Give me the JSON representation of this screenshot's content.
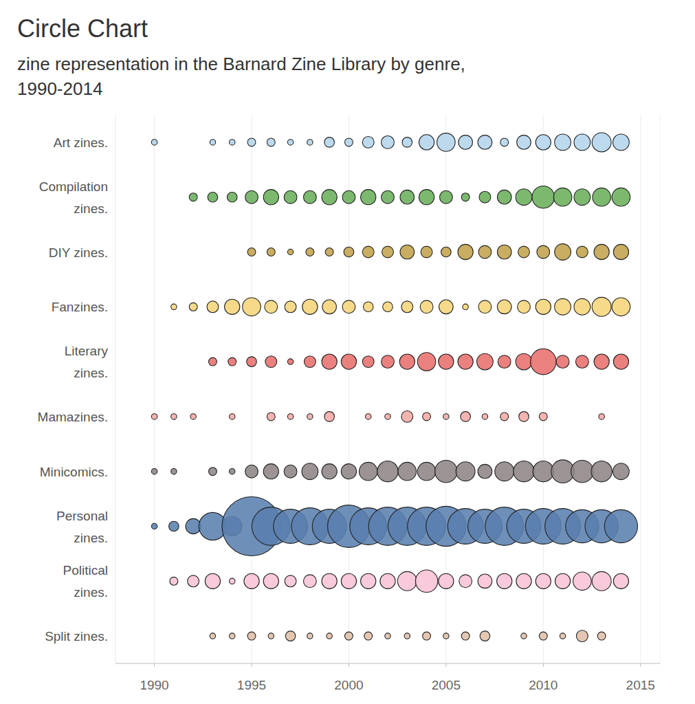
{
  "chart_data": {
    "type": "bubble",
    "title": "Circle Chart",
    "subtitle": "zine representation in the Barnard Zine Library by genre, 1990-2014",
    "x": [
      1990,
      1991,
      1992,
      1993,
      1994,
      1995,
      1996,
      1997,
      1998,
      1999,
      2000,
      2001,
      2002,
      2003,
      2004,
      2005,
      2006,
      2007,
      2008,
      2009,
      2010,
      2011,
      2012,
      2013,
      2014
    ],
    "xlim": [
      1988,
      2016
    ],
    "xticks": [
      1990,
      1995,
      2000,
      2005,
      2010,
      2015
    ],
    "grid": true,
    "series": [
      {
        "name": "Art zines.",
        "color": "#b3d4ec",
        "values": [
          1,
          null,
          null,
          1,
          1,
          2,
          2,
          1,
          1,
          3,
          2,
          4,
          5,
          3,
          7,
          10,
          6,
          6,
          2,
          6,
          7,
          8,
          8,
          11,
          8
        ]
      },
      {
        "name": "Compilation zines.",
        "color": "#6aaf5b",
        "values": [
          null,
          null,
          2,
          3,
          3,
          5,
          7,
          5,
          5,
          7,
          5,
          7,
          5,
          6,
          7,
          5,
          2,
          4,
          6,
          8,
          15,
          10,
          8,
          10,
          10
        ]
      },
      {
        "name": "DIY zines.",
        "color": "#c2a24a",
        "values": [
          null,
          null,
          null,
          null,
          null,
          2,
          2,
          1,
          2,
          2,
          3,
          4,
          4,
          6,
          4,
          3,
          7,
          5,
          6,
          4,
          5,
          8,
          4,
          7,
          7
        ]
      },
      {
        "name": "Fanzines.",
        "color": "#f5d57a",
        "values": [
          null,
          1,
          2,
          4,
          7,
          10,
          5,
          4,
          7,
          6,
          5,
          3,
          3,
          4,
          5,
          6,
          1,
          5,
          6,
          5,
          7,
          8,
          8,
          11,
          10
        ]
      },
      {
        "name": "Literary zines.",
        "color": "#e8706d",
        "values": [
          null,
          null,
          null,
          2,
          2,
          3,
          4,
          1,
          4,
          7,
          7,
          4,
          5,
          7,
          10,
          7,
          7,
          8,
          5,
          8,
          20,
          5,
          5,
          7,
          7
        ]
      },
      {
        "name": "Mamazines.",
        "color": "#f5aaa6",
        "values": [
          1,
          1,
          1,
          null,
          1,
          null,
          2,
          1,
          1,
          3,
          null,
          1,
          1,
          4,
          2,
          1,
          3,
          1,
          2,
          3,
          2,
          null,
          null,
          1,
          null
        ]
      },
      {
        "name": "Minicomics.",
        "color": "#8e8585",
        "values": [
          1,
          1,
          null,
          2,
          1,
          5,
          7,
          5,
          8,
          7,
          7,
          10,
          13,
          10,
          10,
          15,
          11,
          6,
          11,
          13,
          13,
          16,
          15,
          13,
          8
        ]
      },
      {
        "name": "Personal zines.",
        "color": "#5a7fae",
        "values": [
          1,
          3,
          7,
          23,
          11,
          105,
          44,
          35,
          41,
          35,
          54,
          41,
          44,
          44,
          44,
          48,
          38,
          35,
          44,
          35,
          38,
          38,
          33,
          33,
          33
        ]
      },
      {
        "name": "Political zines.",
        "color": "#f8c3d6",
        "values": [
          null,
          2,
          4,
          7,
          1,
          7,
          7,
          4,
          5,
          7,
          7,
          7,
          7,
          11,
          15,
          7,
          5,
          6,
          7,
          7,
          7,
          7,
          10,
          11,
          7
        ]
      },
      {
        "name": "Split zines.",
        "color": "#e0bfa7",
        "values": [
          null,
          null,
          null,
          1,
          1,
          2,
          1,
          3,
          1,
          1,
          2,
          2,
          1,
          1,
          2,
          1,
          2,
          3,
          null,
          1,
          2,
          1,
          4,
          2,
          null
        ]
      }
    ]
  }
}
